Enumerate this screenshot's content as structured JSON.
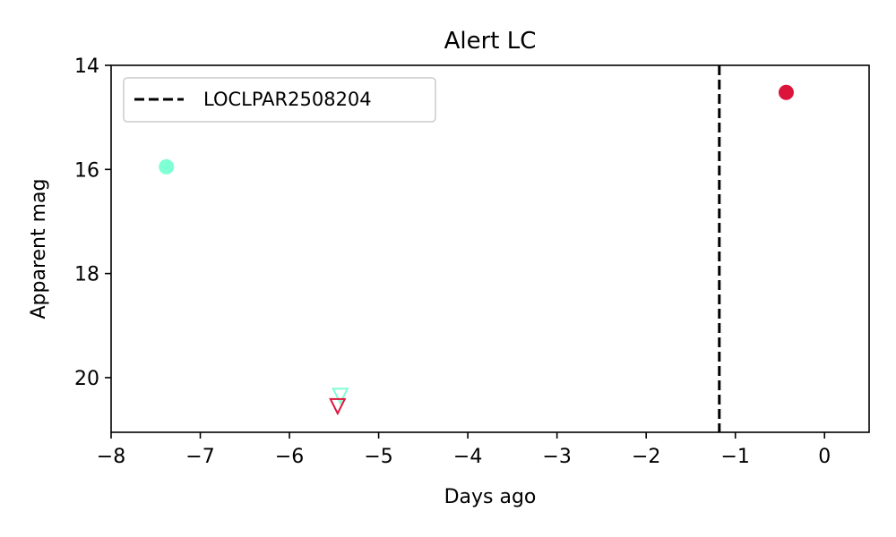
{
  "chart_data": {
    "type": "scatter",
    "title": "Alert LC",
    "xlabel": "Days ago",
    "ylabel": "Apparent mag",
    "xlim": [
      -8,
      0.5
    ],
    "ylim": [
      21.05,
      14
    ],
    "y_inverted": true,
    "xticks": [
      -8,
      -7,
      -6,
      -5,
      -4,
      -3,
      -2,
      -1,
      0
    ],
    "xtick_labels": [
      "−8",
      "−7",
      "−6",
      "−5",
      "−4",
      "−3",
      "−2",
      "−1",
      "0"
    ],
    "yticks": [
      14,
      16,
      18,
      20
    ],
    "ytick_labels": [
      "14",
      "16",
      "18",
      "20"
    ],
    "grid": false,
    "legend": {
      "position": "top-left",
      "entries": [
        "LOCLPAR2508204"
      ]
    },
    "vertical_line": {
      "label": "LOCLPAR2508204",
      "x": -1.18,
      "style": "dashed",
      "color": "#000000"
    },
    "series": [
      {
        "color": "#7fffd4",
        "detections": [
          {
            "x": -7.38,
            "y": 15.95
          }
        ],
        "upper_limits": [
          {
            "x": -5.43,
            "y": 20.35
          }
        ]
      },
      {
        "color": "#dc143c",
        "detections": [
          {
            "x": -0.43,
            "y": 14.52
          }
        ],
        "upper_limits": [
          {
            "x": -5.46,
            "y": 20.55
          }
        ]
      }
    ]
  }
}
